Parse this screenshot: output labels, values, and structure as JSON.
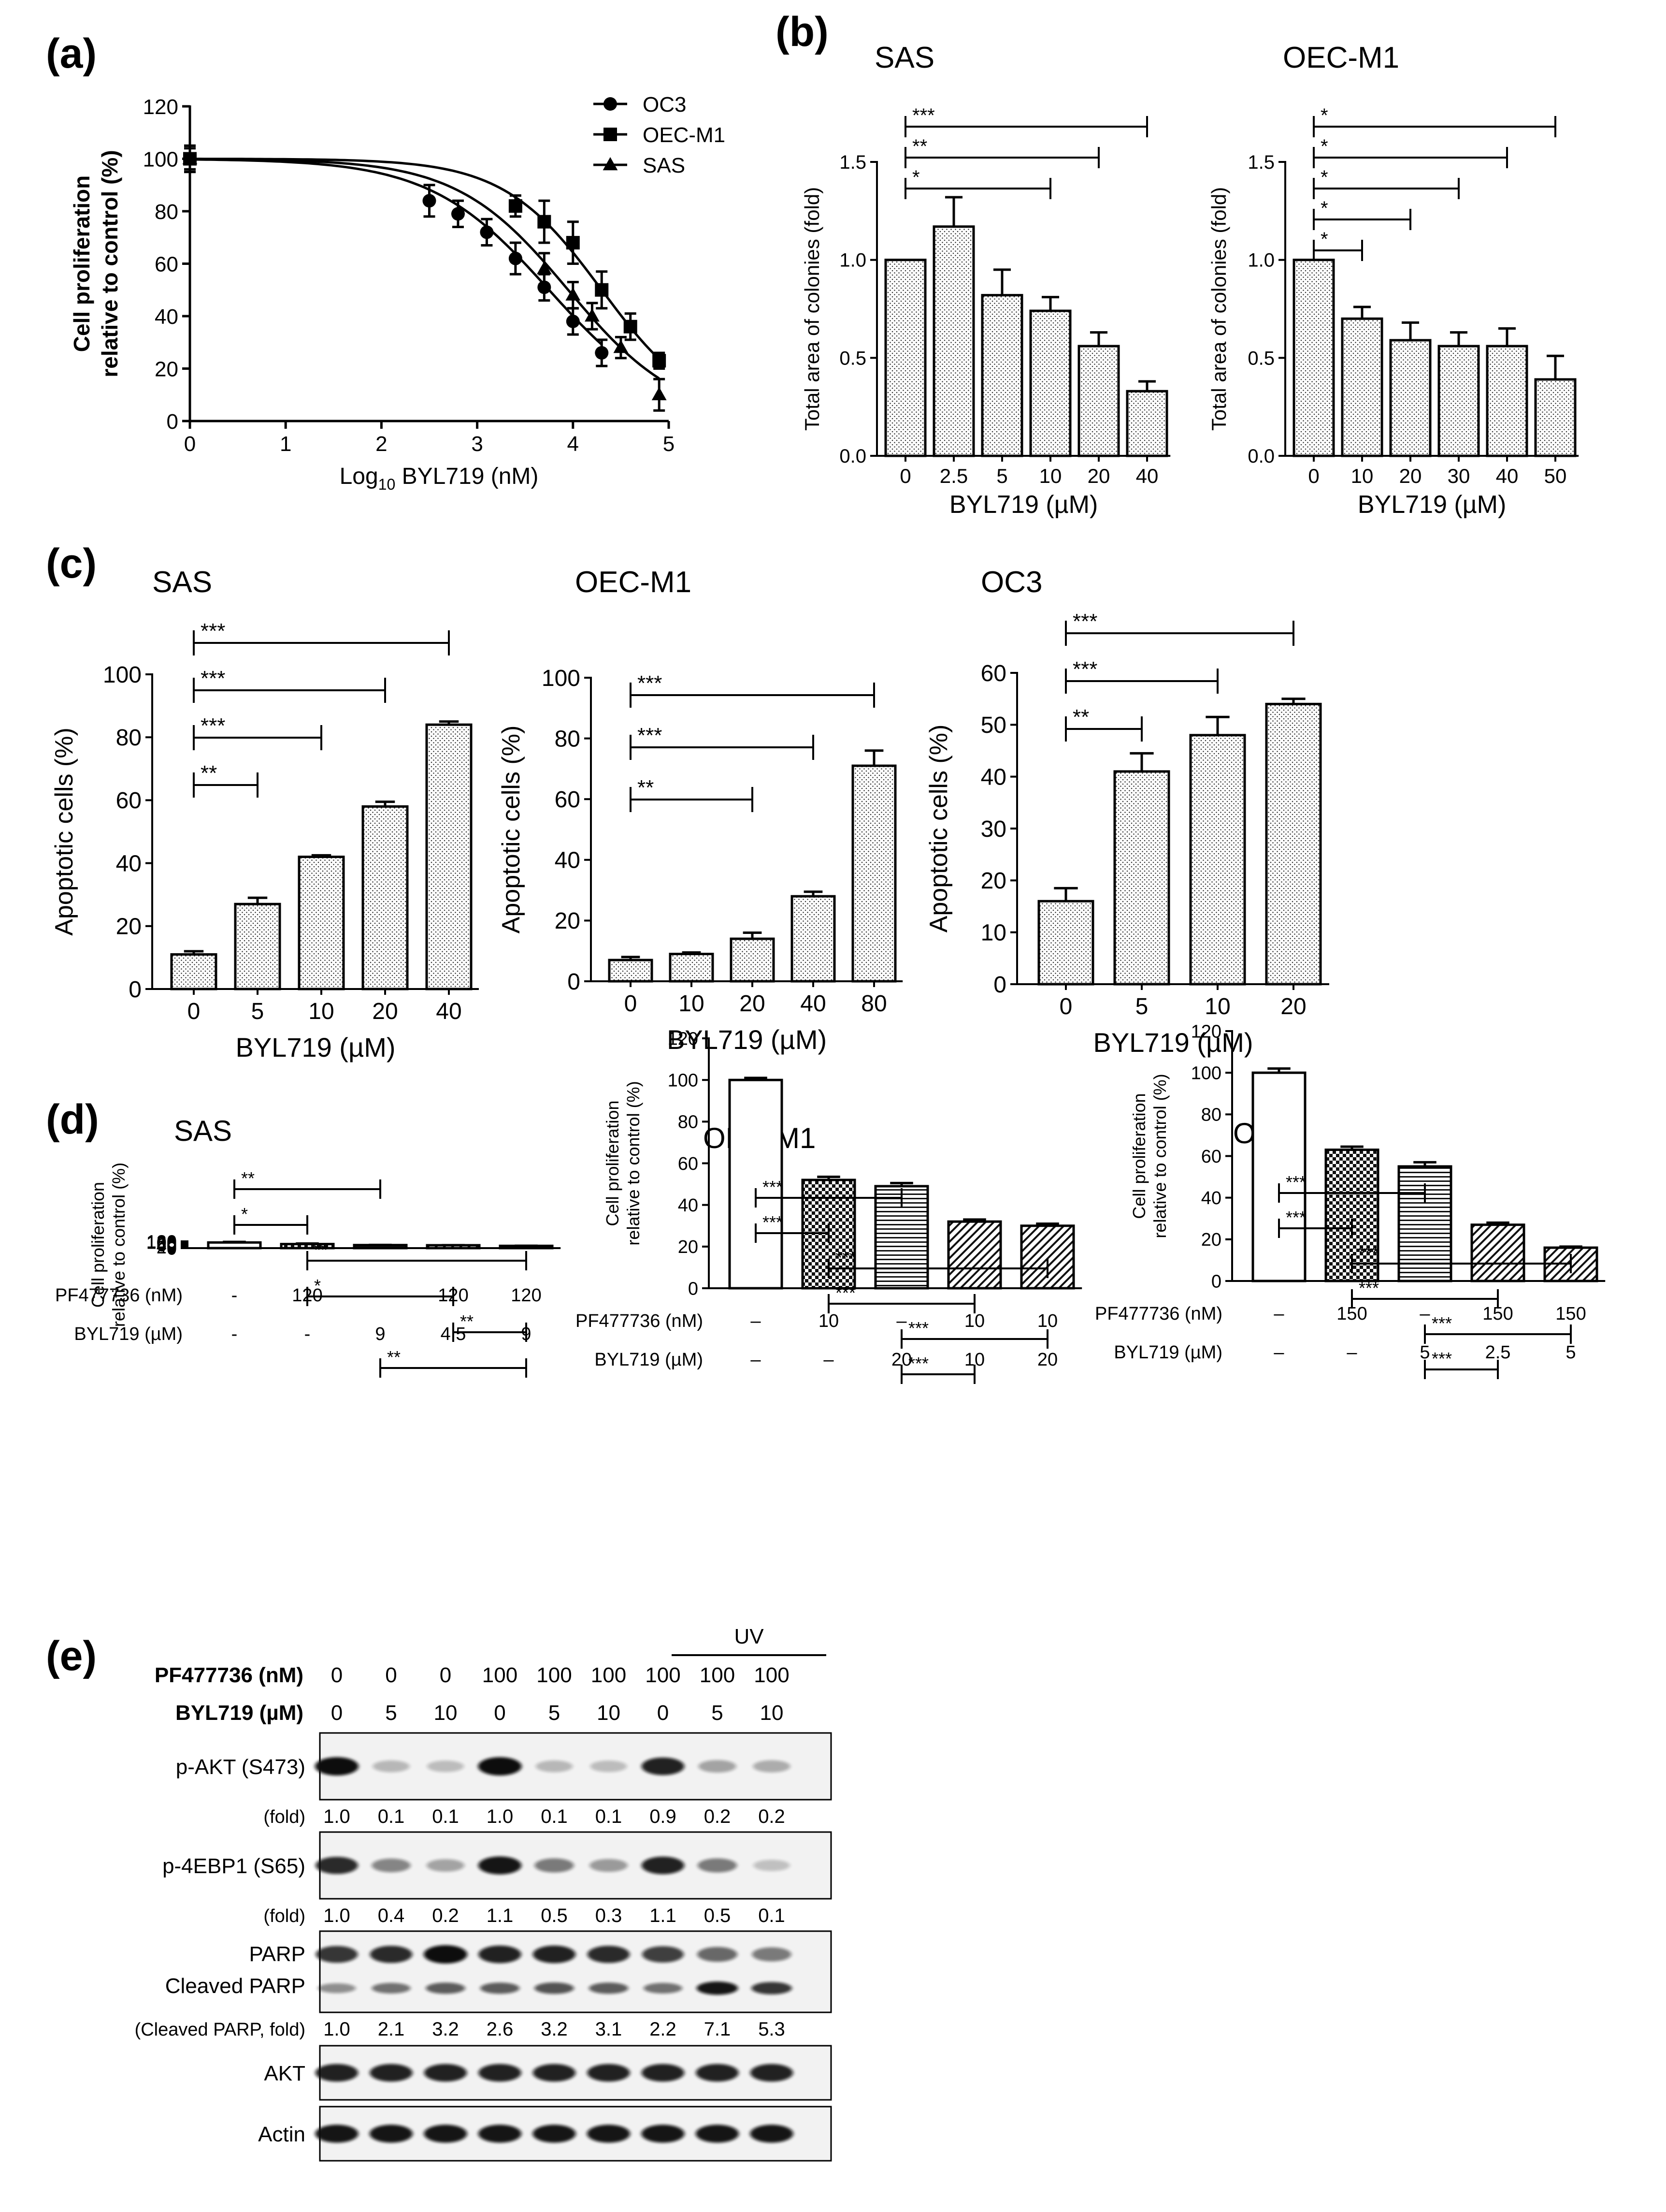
{
  "panel_letters": [
    "(a)",
    "(b)",
    "(c)",
    "(d)",
    "(e)"
  ],
  "colors": {
    "ink": "#000000",
    "background": "#ffffff",
    "blot_bg": "#f2f2f2",
    "band": "#111111"
  },
  "chart_data": [
    {
      "id": "a",
      "type": "line",
      "xlabel_prefix": "Log",
      "xlabel_sub": "10",
      "xlabel_rest": " BYL719 (nM)",
      "ylabel_lines": [
        "Cell proliferation",
        "relative to control (%)"
      ],
      "xlim": [
        0,
        5
      ],
      "ylim": [
        0,
        120
      ],
      "xticks": [
        "0",
        "1",
        "2",
        "3",
        "4",
        "5"
      ],
      "yticks": [
        "0",
        "20",
        "40",
        "60",
        "80",
        "100",
        "120"
      ],
      "legend_position": "top-right",
      "series": [
        {
          "name": "OC3",
          "marker": "circle",
          "x": [
            0,
            2.5,
            2.8,
            3.1,
            3.4,
            3.7,
            4.0,
            4.3
          ],
          "y": [
            100,
            84,
            79,
            72,
            62,
            51,
            38,
            26
          ],
          "err": [
            5,
            6,
            5,
            5,
            6,
            5,
            5,
            5
          ],
          "curve_ic50": 3.75,
          "curve_hill": 0.7
        },
        {
          "name": "OEC-M1",
          "marker": "square",
          "x": [
            0,
            3.4,
            3.7,
            4.0,
            4.3,
            4.6,
            4.9
          ],
          "y": [
            100,
            82,
            76,
            68,
            50,
            36,
            23
          ],
          "err": [
            4,
            4,
            8,
            8,
            7,
            5,
            3
          ],
          "curve_ic50": 4.3,
          "curve_hill": 0.85
        },
        {
          "name": "SAS",
          "marker": "triangle",
          "x": [
            0,
            3.7,
            4.0,
            4.2,
            4.5,
            4.9
          ],
          "y": [
            100,
            58,
            48,
            40,
            28,
            10
          ],
          "err": [
            5,
            6,
            5,
            5,
            4,
            6
          ],
          "curve_ic50": 3.95,
          "curve_hill": 0.75
        }
      ]
    },
    {
      "id": "b-sas",
      "type": "bar",
      "title": "SAS",
      "xlabel": "BYL719 (µM)",
      "ylabel": "Total area of colonies (fold)",
      "categories": [
        "0",
        "2.5",
        "5",
        "10",
        "20",
        "40"
      ],
      "values": [
        1.0,
        1.17,
        0.82,
        0.74,
        0.56,
        0.33
      ],
      "errors": [
        0,
        0.15,
        0.13,
        0.07,
        0.07,
        0.05
      ],
      "ylim": [
        0,
        1.5
      ],
      "yticks": [
        "0.0",
        "0.5",
        "1.0",
        "1.5"
      ],
      "significance": [
        {
          "from": 0,
          "to": 5,
          "label": "***"
        },
        {
          "from": 0,
          "to": 4,
          "label": "**"
        },
        {
          "from": 0,
          "to": 3,
          "label": "*"
        }
      ]
    },
    {
      "id": "b-oec",
      "type": "bar",
      "title": "OEC-M1",
      "xlabel": "BYL719 (µM)",
      "ylabel": "Total area of colonies (fold)",
      "categories": [
        "0",
        "10",
        "20",
        "30",
        "40",
        "50"
      ],
      "values": [
        1.0,
        0.7,
        0.59,
        0.56,
        0.56,
        0.39
      ],
      "errors": [
        0,
        0.06,
        0.09,
        0.07,
        0.09,
        0.12
      ],
      "ylim": [
        0,
        1.5
      ],
      "yticks": [
        "0.0",
        "0.5",
        "1.0",
        "1.5"
      ],
      "significance": [
        {
          "from": 0,
          "to": 5,
          "label": "*"
        },
        {
          "from": 0,
          "to": 4,
          "label": "*"
        },
        {
          "from": 0,
          "to": 3,
          "label": "*"
        },
        {
          "from": 0,
          "to": 2,
          "label": "*"
        },
        {
          "from": 0,
          "to": 1,
          "label": "*"
        }
      ]
    },
    {
      "id": "c-sas",
      "type": "bar",
      "title": "SAS",
      "xlabel": "BYL719 (µM)",
      "ylabel": "Apoptotic cells (%)",
      "categories": [
        "0",
        "5",
        "10",
        "20",
        "40"
      ],
      "values": [
        11,
        27,
        42,
        58,
        84
      ],
      "errors": [
        1,
        2,
        0.5,
        1.5,
        1
      ],
      "ylim": [
        0,
        100
      ],
      "yticks": [
        "0",
        "20",
        "40",
        "60",
        "80",
        "100"
      ],
      "significance": [
        {
          "from": 0,
          "to": 4,
          "label": "***"
        },
        {
          "from": 0,
          "to": 3,
          "label": "***"
        },
        {
          "from": 0,
          "to": 2,
          "label": "***"
        },
        {
          "from": 0,
          "to": 1,
          "label": "**"
        }
      ]
    },
    {
      "id": "c-oec",
      "type": "bar",
      "title": "OEC-M1",
      "xlabel": "BYL719 (µM)",
      "ylabel": "Apoptotic cells (%)",
      "categories": [
        "0",
        "10",
        "20",
        "40",
        "80"
      ],
      "values": [
        7,
        9,
        14,
        28,
        71
      ],
      "errors": [
        1,
        0.5,
        2,
        1.5,
        5
      ],
      "ylim": [
        0,
        100
      ],
      "yticks": [
        "0",
        "20",
        "40",
        "60",
        "80",
        "100"
      ],
      "significance": [
        {
          "from": 0,
          "to": 4,
          "label": "***"
        },
        {
          "from": 0,
          "to": 3,
          "label": "***"
        },
        {
          "from": 0,
          "to": 2,
          "label": "**"
        }
      ]
    },
    {
      "id": "c-oc3",
      "type": "bar",
      "title": "OC3",
      "xlabel": "BYL719 (µM)",
      "ylabel": "Apoptotic cells (%)",
      "categories": [
        "0",
        "5",
        "10",
        "20"
      ],
      "values": [
        16,
        41,
        48,
        54
      ],
      "errors": [
        2.5,
        3.5,
        3.5,
        1
      ],
      "ylim": [
        0,
        60
      ],
      "yticks": [
        "0",
        "10",
        "20",
        "30",
        "40",
        "50",
        "60"
      ],
      "significance": [
        {
          "from": 0,
          "to": 3,
          "label": "***"
        },
        {
          "from": 0,
          "to": 2,
          "label": "***"
        },
        {
          "from": 0,
          "to": 1,
          "label": "**"
        }
      ]
    },
    {
      "id": "d-sas",
      "type": "bar",
      "title": "SAS",
      "ylabel_lines": [
        "Cell proliferation",
        "relative to control (%)"
      ],
      "row_labels": [
        "PF477736 (nM)",
        "BYL719 (µM)"
      ],
      "pf_values": [
        "-",
        "120",
        "-",
        "120",
        "120"
      ],
      "byl_values": [
        "-",
        "-",
        "9",
        "4.5",
        "9"
      ],
      "patterns": [
        "none",
        "check",
        "hlines",
        "diag",
        "diag"
      ],
      "values": [
        100,
        72,
        54,
        51,
        40
      ],
      "errors": [
        10,
        9,
        3,
        2,
        2
      ],
      "ylim": [
        0,
        120
      ],
      "yticks": [
        "0",
        "20",
        "40",
        "60",
        "80",
        "100",
        "120"
      ],
      "significance": [
        {
          "from": 0,
          "to": 2,
          "label": "**"
        },
        {
          "from": 0,
          "to": 1,
          "label": "*"
        },
        {
          "from": 1,
          "to": 4,
          "label": "**"
        },
        {
          "from": 1,
          "to": 3,
          "label": "*"
        },
        {
          "from": 3,
          "to": 4,
          "label": "**"
        },
        {
          "from": 2,
          "to": 4,
          "label": "**"
        }
      ]
    },
    {
      "id": "d-oec",
      "type": "bar",
      "title": "OEC-M1",
      "ylabel_lines": [
        "Cell proliferation",
        "relative to control (%)"
      ],
      "row_labels": [
        "PF477736 (nM)",
        "BYL719 (µM)"
      ],
      "pf_values": [
        "–",
        "10",
        "–",
        "10",
        "10"
      ],
      "byl_values": [
        "–",
        "–",
        "20",
        "10",
        "20"
      ],
      "patterns": [
        "none",
        "check",
        "hlines",
        "diag",
        "diag"
      ],
      "values": [
        100,
        52,
        49,
        32,
        30
      ],
      "errors": [
        1,
        1.5,
        1.5,
        1,
        1
      ],
      "ylim": [
        0,
        120
      ],
      "yticks": [
        "0",
        "20",
        "40",
        "60",
        "80",
        "100",
        "120"
      ],
      "significance": [
        {
          "from": 0,
          "to": 2,
          "label": "***"
        },
        {
          "from": 0,
          "to": 1,
          "label": "***"
        },
        {
          "from": 1,
          "to": 4,
          "label": "***"
        },
        {
          "from": 1,
          "to": 3,
          "label": "***"
        },
        {
          "from": 2,
          "to": 4,
          "label": "***"
        },
        {
          "from": 2,
          "to": 3,
          "label": "***"
        }
      ]
    },
    {
      "id": "d-oc3",
      "type": "bar",
      "title": "OC3",
      "ylabel_lines": [
        "Cell proliferation",
        "relative to control (%)"
      ],
      "row_labels": [
        "PF477736 (nM)",
        "BYL719 (µM)"
      ],
      "pf_values": [
        "–",
        "150",
        "–",
        "150",
        "150"
      ],
      "byl_values": [
        "–",
        "–",
        "5",
        "2.5",
        "5"
      ],
      "patterns": [
        "none",
        "check",
        "hlines",
        "diag",
        "diag"
      ],
      "values": [
        100,
        63,
        55,
        27,
        16
      ],
      "errors": [
        2,
        1.5,
        2,
        1,
        0.5
      ],
      "ylim": [
        0,
        120
      ],
      "yticks": [
        "0",
        "20",
        "40",
        "60",
        "80",
        "100",
        "120"
      ],
      "significance": [
        {
          "from": 0,
          "to": 2,
          "label": "***"
        },
        {
          "from": 0,
          "to": 1,
          "label": "***"
        },
        {
          "from": 1,
          "to": 4,
          "label": "***"
        },
        {
          "from": 1,
          "to": 3,
          "label": "***"
        },
        {
          "from": 2,
          "to": 4,
          "label": "***"
        },
        {
          "from": 2,
          "to": 3,
          "label": "***"
        }
      ]
    }
  ],
  "western": {
    "uv_label": "UV",
    "pf_label": "PF477736 (nM)",
    "byl_label": "BYL719 (µM)",
    "pf_values": [
      "0",
      "0",
      "0",
      "100",
      "100",
      "100",
      "100",
      "100",
      "100"
    ],
    "byl_values": [
      "0",
      "5",
      "10",
      "0",
      "5",
      "10",
      "0",
      "5",
      "10"
    ],
    "blots": [
      {
        "label": "p-AKT (S473)",
        "fold_label": "(fold)",
        "folds": [
          "1.0",
          "0.1",
          "0.1",
          "1.0",
          "0.1",
          "0.1",
          "0.9",
          "0.2",
          "0.2"
        ],
        "intensity": [
          1.0,
          0.15,
          0.12,
          1.0,
          0.15,
          0.12,
          0.9,
          0.25,
          0.2
        ]
      },
      {
        "label": "p-4EBP1 (S65)",
        "fold_label": "(fold)",
        "folds": [
          "1.0",
          "0.4",
          "0.2",
          "1.1",
          "0.5",
          "0.3",
          "1.1",
          "0.5",
          "0.1"
        ],
        "intensity": [
          0.85,
          0.4,
          0.25,
          0.95,
          0.45,
          0.3,
          0.9,
          0.45,
          0.1
        ]
      },
      {
        "label": "PARP",
        "label2": "Cleaved PARP",
        "fold_label": "(Cleaved PARP, fold)",
        "folds": [
          "1.0",
          "2.1",
          "3.2",
          "2.6",
          "3.2",
          "3.1",
          "2.2",
          "7.1",
          "5.3"
        ],
        "intensity": [
          0.8,
          0.85,
          1.0,
          0.9,
          0.9,
          0.85,
          0.75,
          0.55,
          0.45
        ],
        "intensity2": [
          0.35,
          0.5,
          0.6,
          0.6,
          0.65,
          0.6,
          0.5,
          0.95,
          0.8
        ]
      },
      {
        "label": "AKT",
        "intensity": [
          0.9,
          0.9,
          0.9,
          0.9,
          0.9,
          0.9,
          0.9,
          0.9,
          0.9
        ]
      },
      {
        "label": "Actin",
        "intensity": [
          0.95,
          0.95,
          0.95,
          0.95,
          0.95,
          0.95,
          0.95,
          0.95,
          0.95
        ]
      }
    ]
  }
}
